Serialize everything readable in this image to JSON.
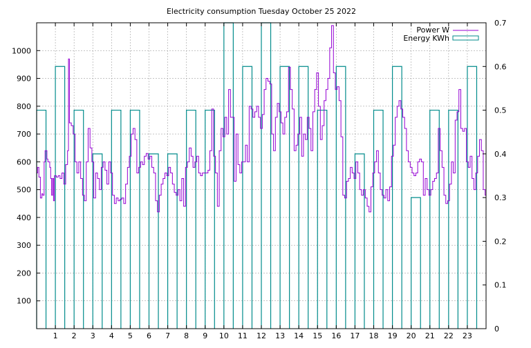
{
  "chart_data": {
    "type": "line",
    "title": "Electricity consumption Tuesday October 25 2022",
    "xlabel": "",
    "ylabel": "",
    "x_ticks": [
      "1",
      "2",
      "3",
      "4",
      "5",
      "6",
      "7",
      "8",
      "9",
      "10",
      "11",
      "12",
      "13",
      "14",
      "15",
      "16",
      "17",
      "18",
      "19",
      "20",
      "21",
      "22",
      "23"
    ],
    "xlim": [
      0,
      24
    ],
    "y_left": {
      "ticks": [
        "100",
        "200",
        "300",
        "400",
        "500",
        "600",
        "700",
        "800",
        "900",
        "1000"
      ],
      "ylim": [
        0,
        1100
      ]
    },
    "y_right": {
      "ticks": [
        "0",
        "0.1",
        "0.2",
        "0.3",
        "0.4",
        "0.5",
        "0.6",
        "0.7"
      ],
      "ylim": [
        0,
        0.7
      ]
    },
    "grid": true,
    "legend_position": "top-right",
    "series": [
      {
        "name": "Power W",
        "color": "#9400d3",
        "axis": "left",
        "style": "steps",
        "points": [
          [
            0.0,
            560
          ],
          [
            0.05,
            580
          ],
          [
            0.12,
            545
          ],
          [
            0.2,
            470
          ],
          [
            0.28,
            485
          ],
          [
            0.33,
            480
          ],
          [
            0.4,
            600
          ],
          [
            0.45,
            640
          ],
          [
            0.55,
            610
          ],
          [
            0.6,
            600
          ],
          [
            0.7,
            580
          ],
          [
            0.75,
            540
          ],
          [
            0.8,
            480
          ],
          [
            0.85,
            540
          ],
          [
            0.9,
            460
          ],
          [
            0.95,
            550
          ],
          [
            1.05,
            545
          ],
          [
            1.15,
            550
          ],
          [
            1.25,
            540
          ],
          [
            1.35,
            560
          ],
          [
            1.45,
            520
          ],
          [
            1.55,
            590
          ],
          [
            1.65,
            640
          ],
          [
            1.7,
            970
          ],
          [
            1.75,
            740
          ],
          [
            1.85,
            730
          ],
          [
            1.95,
            700
          ],
          [
            2.05,
            600
          ],
          [
            2.15,
            560
          ],
          [
            2.25,
            600
          ],
          [
            2.35,
            540
          ],
          [
            2.45,
            480
          ],
          [
            2.55,
            460
          ],
          [
            2.65,
            600
          ],
          [
            2.75,
            720
          ],
          [
            2.85,
            650
          ],
          [
            2.95,
            600
          ],
          [
            3.05,
            470
          ],
          [
            3.15,
            560
          ],
          [
            3.25,
            540
          ],
          [
            3.35,
            500
          ],
          [
            3.45,
            580
          ],
          [
            3.55,
            600
          ],
          [
            3.65,
            570
          ],
          [
            3.75,
            520
          ],
          [
            3.85,
            600
          ],
          [
            3.95,
            560
          ],
          [
            4.05,
            480
          ],
          [
            4.15,
            450
          ],
          [
            4.25,
            470
          ],
          [
            4.35,
            460
          ],
          [
            4.45,
            465
          ],
          [
            4.55,
            470
          ],
          [
            4.65,
            450
          ],
          [
            4.75,
            520
          ],
          [
            4.85,
            580
          ],
          [
            4.95,
            620
          ],
          [
            5.05,
            700
          ],
          [
            5.15,
            720
          ],
          [
            5.25,
            680
          ],
          [
            5.35,
            560
          ],
          [
            5.45,
            580
          ],
          [
            5.55,
            600
          ],
          [
            5.65,
            590
          ],
          [
            5.75,
            620
          ],
          [
            5.85,
            630
          ],
          [
            5.95,
            610
          ],
          [
            6.05,
            620
          ],
          [
            6.15,
            580
          ],
          [
            6.25,
            560
          ],
          [
            6.35,
            460
          ],
          [
            6.45,
            420
          ],
          [
            6.55,
            480
          ],
          [
            6.65,
            520
          ],
          [
            6.75,
            540
          ],
          [
            6.85,
            560
          ],
          [
            6.95,
            550
          ],
          [
            7.05,
            580
          ],
          [
            7.15,
            560
          ],
          [
            7.25,
            520
          ],
          [
            7.35,
            490
          ],
          [
            7.45,
            480
          ],
          [
            7.55,
            500
          ],
          [
            7.65,
            460
          ],
          [
            7.75,
            540
          ],
          [
            7.85,
            440
          ],
          [
            7.95,
            580
          ],
          [
            8.05,
            600
          ],
          [
            8.15,
            650
          ],
          [
            8.25,
            620
          ],
          [
            8.35,
            580
          ],
          [
            8.45,
            600
          ],
          [
            8.55,
            620
          ],
          [
            8.65,
            560
          ],
          [
            8.75,
            550
          ],
          [
            8.85,
            560
          ],
          [
            8.95,
            560
          ],
          [
            9.05,
            560
          ],
          [
            9.15,
            570
          ],
          [
            9.25,
            640
          ],
          [
            9.35,
            790
          ],
          [
            9.45,
            620
          ],
          [
            9.55,
            560
          ],
          [
            9.65,
            440
          ],
          [
            9.75,
            640
          ],
          [
            9.85,
            720
          ],
          [
            9.95,
            690
          ],
          [
            10.05,
            760
          ],
          [
            10.15,
            700
          ],
          [
            10.25,
            860
          ],
          [
            10.35,
            760
          ],
          [
            10.45,
            760
          ],
          [
            10.55,
            530
          ],
          [
            10.65,
            700
          ],
          [
            10.75,
            590
          ],
          [
            10.85,
            560
          ],
          [
            10.95,
            600
          ],
          [
            11.05,
            600
          ],
          [
            11.15,
            660
          ],
          [
            11.25,
            600
          ],
          [
            11.35,
            800
          ],
          [
            11.45,
            790
          ],
          [
            11.55,
            760
          ],
          [
            11.65,
            780
          ],
          [
            11.75,
            800
          ],
          [
            11.85,
            760
          ],
          [
            11.95,
            720
          ],
          [
            12.05,
            770
          ],
          [
            12.15,
            860
          ],
          [
            12.25,
            900
          ],
          [
            12.35,
            890
          ],
          [
            12.45,
            880
          ],
          [
            12.55,
            700
          ],
          [
            12.65,
            640
          ],
          [
            12.75,
            760
          ],
          [
            12.85,
            810
          ],
          [
            12.95,
            780
          ],
          [
            13.05,
            740
          ],
          [
            13.15,
            700
          ],
          [
            13.25,
            760
          ],
          [
            13.35,
            780
          ],
          [
            13.45,
            940
          ],
          [
            13.55,
            860
          ],
          [
            13.65,
            790
          ],
          [
            13.75,
            640
          ],
          [
            13.85,
            660
          ],
          [
            13.95,
            700
          ],
          [
            14.05,
            760
          ],
          [
            14.15,
            620
          ],
          [
            14.25,
            700
          ],
          [
            14.35,
            680
          ],
          [
            14.45,
            760
          ],
          [
            14.55,
            720
          ],
          [
            14.65,
            640
          ],
          [
            14.75,
            780
          ],
          [
            14.85,
            860
          ],
          [
            14.95,
            920
          ],
          [
            15.05,
            800
          ],
          [
            15.15,
            680
          ],
          [
            15.25,
            730
          ],
          [
            15.35,
            820
          ],
          [
            15.45,
            860
          ],
          [
            15.55,
            900
          ],
          [
            15.65,
            1010
          ],
          [
            15.75,
            1090
          ],
          [
            15.85,
            920
          ],
          [
            15.95,
            860
          ],
          [
            16.05,
            870
          ],
          [
            16.15,
            820
          ],
          [
            16.25,
            690
          ],
          [
            16.35,
            480
          ],
          [
            16.45,
            470
          ],
          [
            16.55,
            530
          ],
          [
            16.65,
            540
          ],
          [
            16.75,
            580
          ],
          [
            16.85,
            560
          ],
          [
            16.95,
            540
          ],
          [
            17.05,
            600
          ],
          [
            17.15,
            560
          ],
          [
            17.25,
            500
          ],
          [
            17.35,
            480
          ],
          [
            17.45,
            500
          ],
          [
            17.55,
            470
          ],
          [
            17.65,
            440
          ],
          [
            17.75,
            420
          ],
          [
            17.85,
            510
          ],
          [
            17.95,
            560
          ],
          [
            18.05,
            600
          ],
          [
            18.15,
            640
          ],
          [
            18.25,
            560
          ],
          [
            18.35,
            500
          ],
          [
            18.45,
            480
          ],
          [
            18.55,
            470
          ],
          [
            18.65,
            500
          ],
          [
            18.75,
            460
          ],
          [
            18.85,
            510
          ],
          [
            18.95,
            620
          ],
          [
            19.05,
            660
          ],
          [
            19.15,
            760
          ],
          [
            19.25,
            800
          ],
          [
            19.35,
            820
          ],
          [
            19.45,
            790
          ],
          [
            19.55,
            760
          ],
          [
            19.65,
            720
          ],
          [
            19.75,
            640
          ],
          [
            19.85,
            600
          ],
          [
            19.95,
            580
          ],
          [
            20.05,
            560
          ],
          [
            20.15,
            550
          ],
          [
            20.25,
            560
          ],
          [
            20.35,
            600
          ],
          [
            20.45,
            610
          ],
          [
            20.55,
            600
          ],
          [
            20.65,
            480
          ],
          [
            20.75,
            540
          ],
          [
            20.85,
            500
          ],
          [
            20.95,
            480
          ],
          [
            21.05,
            500
          ],
          [
            21.15,
            530
          ],
          [
            21.25,
            540
          ],
          [
            21.35,
            560
          ],
          [
            21.45,
            720
          ],
          [
            21.55,
            640
          ],
          [
            21.65,
            580
          ],
          [
            21.75,
            480
          ],
          [
            21.85,
            450
          ],
          [
            21.95,
            460
          ],
          [
            22.05,
            520
          ],
          [
            22.15,
            600
          ],
          [
            22.25,
            560
          ],
          [
            22.35,
            750
          ],
          [
            22.45,
            780
          ],
          [
            22.55,
            860
          ],
          [
            22.65,
            720
          ],
          [
            22.75,
            710
          ],
          [
            22.85,
            720
          ],
          [
            22.95,
            600
          ],
          [
            23.05,
            580
          ],
          [
            23.15,
            620
          ],
          [
            23.25,
            540
          ],
          [
            23.35,
            500
          ],
          [
            23.45,
            560
          ],
          [
            23.55,
            620
          ],
          [
            23.65,
            680
          ],
          [
            23.75,
            640
          ],
          [
            23.85,
            500
          ],
          [
            23.95,
            480
          ]
        ]
      },
      {
        "name": "Energy KWh",
        "color": "#008b8b",
        "axis": "right",
        "style": "fsteps",
        "hours": [
          0,
          1,
          2,
          3,
          4,
          5,
          6,
          7,
          8,
          9,
          10,
          11,
          12,
          13,
          14,
          15,
          16,
          17,
          18,
          19,
          20,
          21,
          22,
          23
        ],
        "values": [
          0.5,
          0.6,
          0.5,
          0.4,
          0.5,
          0.5,
          0.4,
          0.4,
          0.5,
          0.5,
          0.75,
          0.6,
          0.75,
          0.6,
          0.6,
          0.5,
          0.6,
          0.4,
          0.5,
          0.6,
          0.3,
          0.5,
          0.5,
          0.6
        ]
      }
    ]
  }
}
